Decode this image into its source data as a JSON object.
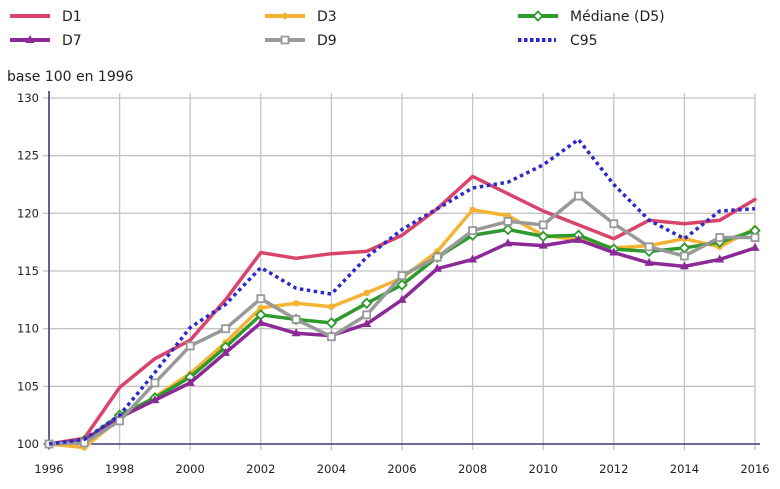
{
  "chart_data": {
    "type": "line",
    "title": "",
    "ylabel": "base 100 en 1996",
    "xlabel": "",
    "x": [
      1996,
      1997,
      1998,
      1999,
      2000,
      2001,
      2002,
      2003,
      2004,
      2005,
      2006,
      2007,
      2008,
      2009,
      2010,
      2011,
      2012,
      2013,
      2014,
      2015,
      2016
    ],
    "xlim": [
      1996,
      2016
    ],
    "ylim": [
      100,
      130
    ],
    "xticks": [
      "1996",
      "1998",
      "2000",
      "2002",
      "2004",
      "2006",
      "2008",
      "2010",
      "2012",
      "2014",
      "2016"
    ],
    "yticks": [
      "100",
      "105",
      "110",
      "115",
      "120",
      "125",
      "130"
    ],
    "grid": true,
    "legend_position": "top",
    "series": [
      {
        "name": "D1",
        "color": "#d9456a",
        "marker": "none",
        "dash": "solid",
        "values": [
          100,
          100.5,
          104.9,
          107.4,
          109.0,
          112.5,
          116.6,
          116.1,
          116.5,
          116.7,
          118.1,
          120.4,
          123.2,
          121.7,
          120.2,
          119.0,
          117.8,
          119.4,
          119.1,
          119.4,
          121.2
        ]
      },
      {
        "name": "D3",
        "color": "#f5b335",
        "marker": "circle",
        "dash": "solid",
        "values": [
          100,
          99.7,
          102.2,
          104.1,
          106.1,
          108.8,
          111.8,
          112.2,
          111.9,
          113.1,
          114.4,
          116.7,
          120.3,
          119.8,
          118.1,
          117.7,
          117.0,
          117.2,
          117.8,
          117.1,
          118.7
        ]
      },
      {
        "name": "Médiane (D5)",
        "color": "#2e9a2e",
        "marker": "diamond",
        "dash": "solid",
        "values": [
          100,
          100.3,
          102.5,
          104.0,
          105.8,
          108.4,
          111.2,
          110.8,
          110.5,
          112.2,
          113.8,
          116.2,
          118.1,
          118.6,
          118.0,
          118.1,
          116.9,
          116.7,
          117.0,
          117.5,
          118.5
        ]
      },
      {
        "name": "D7",
        "color": "#8b2a96",
        "marker": "triangle",
        "dash": "solid",
        "values": [
          100,
          100.3,
          102.3,
          103.8,
          105.3,
          107.9,
          110.5,
          109.6,
          109.4,
          110.4,
          112.5,
          115.2,
          116.0,
          117.4,
          117.2,
          117.7,
          116.6,
          115.7,
          115.4,
          116.0,
          117.0
        ]
      },
      {
        "name": "D9",
        "color": "#999999",
        "marker": "square",
        "dash": "solid",
        "values": [
          100,
          100.1,
          102.0,
          105.3,
          108.5,
          110.0,
          112.6,
          110.8,
          109.3,
          111.2,
          114.6,
          116.2,
          118.5,
          119.3,
          119.0,
          121.5,
          119.1,
          117.1,
          116.3,
          117.9,
          117.9
        ]
      },
      {
        "name": "C95",
        "color": "#2a2acc",
        "marker": "none",
        "dash": "dotted",
        "values": [
          100,
          100.4,
          102.5,
          106.2,
          110.1,
          112.1,
          115.3,
          113.5,
          113.0,
          116.2,
          118.6,
          120.4,
          122.2,
          122.7,
          124.2,
          126.4,
          122.5,
          119.4,
          117.8,
          120.2,
          120.4
        ]
      }
    ]
  },
  "legend": {
    "items": [
      {
        "label": "D1",
        "series": 0
      },
      {
        "label": "D3",
        "series": 1
      },
      {
        "label": "Médiane (D5)",
        "series": 2
      },
      {
        "label": "D7",
        "series": 3
      },
      {
        "label": "D9",
        "series": 4
      },
      {
        "label": "C95",
        "series": 5
      }
    ]
  },
  "axis_color": "#3b3b7a",
  "grid_color": "#c4c4c4"
}
